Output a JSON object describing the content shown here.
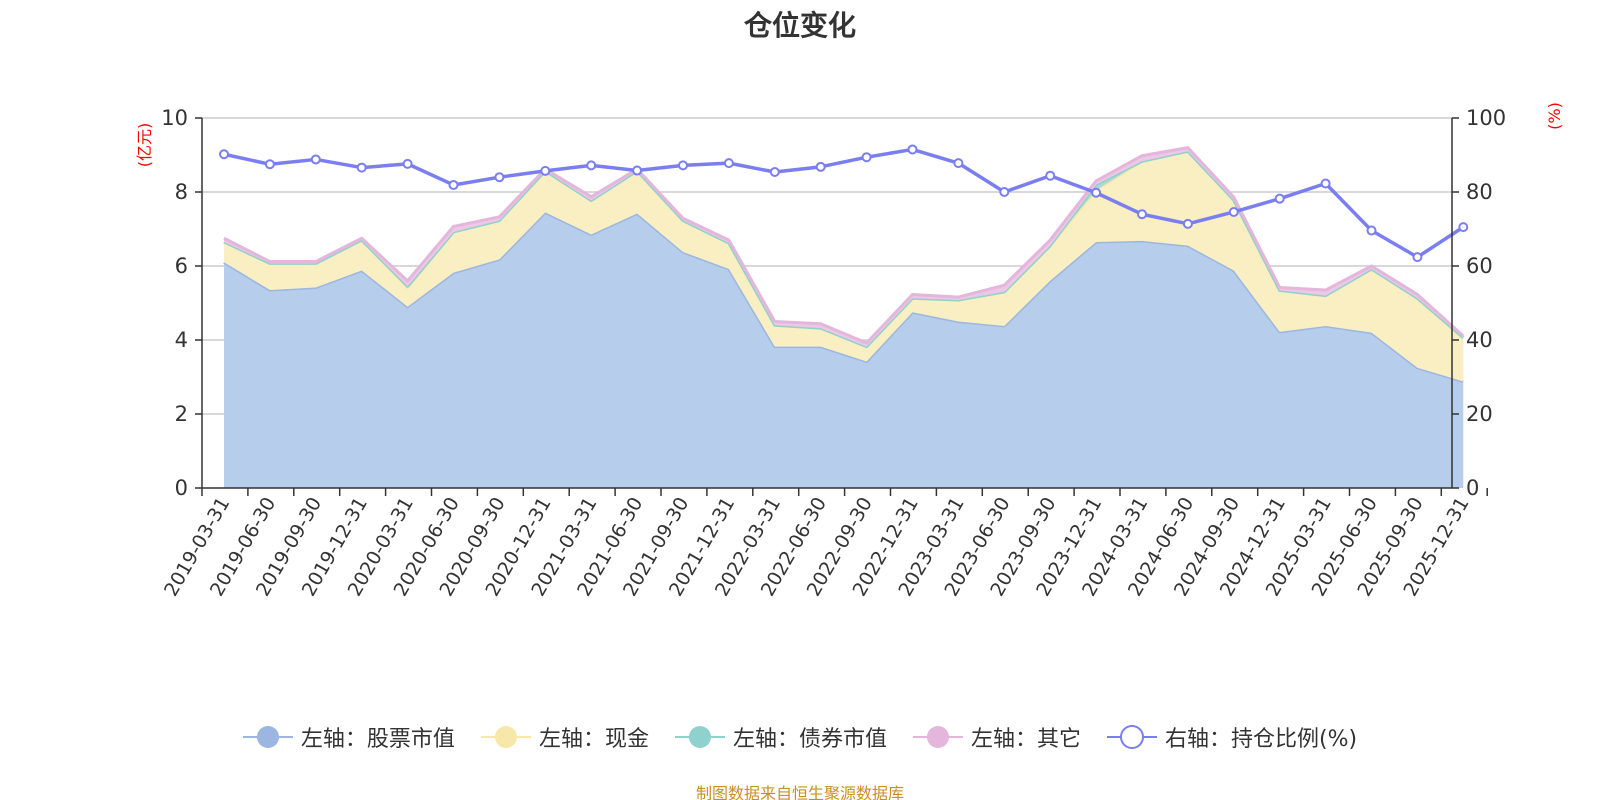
{
  "chart_data": {
    "type": "area",
    "title": "仓位变化",
    "y_left_unit": "(亿元)",
    "y_right_unit": "(%)",
    "y_left_range": [
      0,
      10
    ],
    "y_left_ticks": [
      "0",
      "2",
      "4",
      "6",
      "8",
      "10"
    ],
    "y_right_range": [
      0,
      100
    ],
    "y_right_ticks": [
      "0",
      "20",
      "40",
      "60",
      "80",
      "100"
    ],
    "grid": true,
    "legend_position": "bottom-center",
    "categories": [
      "2019-03-31",
      "2019-06-30",
      "2019-09-30",
      "2019-12-31",
      "2020-03-31",
      "2020-06-30",
      "2020-09-30",
      "2020-12-31",
      "2021-03-31",
      "2021-06-30",
      "2021-09-30",
      "2021-12-31",
      "2022-03-31",
      "2022-06-30",
      "2022-09-30",
      "2022-12-31",
      "2023-03-31",
      "2023-06-30",
      "2023-09-30",
      "2023-12-31",
      "2024-03-31",
      "2024-06-30",
      "2024-09-30",
      "2024-12-31",
      "2025-03-31",
      "2025-06-30",
      "2025-09-30",
      "2025-12-31"
    ],
    "stacked_series": [
      {
        "name": "左轴：股票市值",
        "axis": "left",
        "line_color": "#9bb6e0",
        "fill_color": "#b7cdec",
        "values": [
          6.1,
          5.35,
          5.42,
          5.88,
          4.9,
          5.82,
          6.18,
          7.45,
          6.85,
          7.42,
          6.38,
          5.92,
          3.82,
          3.82,
          3.42,
          4.75,
          4.5,
          4.38,
          5.6,
          6.65,
          6.68,
          6.55,
          5.88,
          4.22,
          4.38,
          4.2,
          3.25,
          2.88
        ]
      },
      {
        "name": "左轴：现金",
        "axis": "left",
        "line_color": "#f7e7a8",
        "fill_color": "#f9efc2",
        "values": [
          0.55,
          0.72,
          0.65,
          0.82,
          0.52,
          1.1,
          1.05,
          1.12,
          0.92,
          1.15,
          0.85,
          0.7,
          0.58,
          0.5,
          0.4,
          0.38,
          0.58,
          0.92,
          0.95,
          1.4,
          2.15,
          2.55,
          1.9,
          1.12,
          0.82,
          1.72,
          1.88,
          1.18
        ]
      },
      {
        "name": "左轴：债券市值",
        "axis": "left",
        "line_color": "#8fd1cc",
        "fill_color": "#a6dad5",
        "values": [
          0.0,
          0.0,
          0.0,
          0.0,
          0.03,
          0.0,
          0.0,
          0.0,
          0.0,
          0.0,
          0.0,
          0.0,
          0.0,
          0.0,
          0.0,
          0.0,
          0.0,
          0.0,
          0.0,
          0.15,
          0.0,
          0.0,
          0.0,
          0.0,
          0.0,
          0.0,
          0.0,
          0.0
        ]
      },
      {
        "name": "左轴：其它",
        "axis": "left",
        "line_color": "#e4b6dc",
        "fill_color": "#ecc8e6",
        "values": [
          0.1,
          0.05,
          0.05,
          0.05,
          0.15,
          0.15,
          0.1,
          0.05,
          0.1,
          0.05,
          0.06,
          0.08,
          0.1,
          0.12,
          0.1,
          0.1,
          0.08,
          0.18,
          0.15,
          0.1,
          0.15,
          0.1,
          0.08,
          0.08,
          0.15,
          0.08,
          0.1,
          0.05
        ]
      }
    ],
    "ratio_series": {
      "name": "右轴：持仓比例(%)",
      "axis": "right",
      "line_color": "#7a7ef0",
      "values": [
        90.2,
        87.5,
        88.8,
        86.6,
        87.6,
        81.9,
        84.0,
        85.7,
        87.2,
        85.8,
        87.2,
        87.8,
        85.4,
        86.8,
        89.4,
        91.5,
        87.8,
        80.0,
        84.4,
        79.8,
        74.0,
        71.4,
        74.6,
        78.2,
        82.3,
        69.6,
        62.4,
        70.5
      ]
    }
  },
  "source_note": "制图数据来自恒生聚源数据库"
}
